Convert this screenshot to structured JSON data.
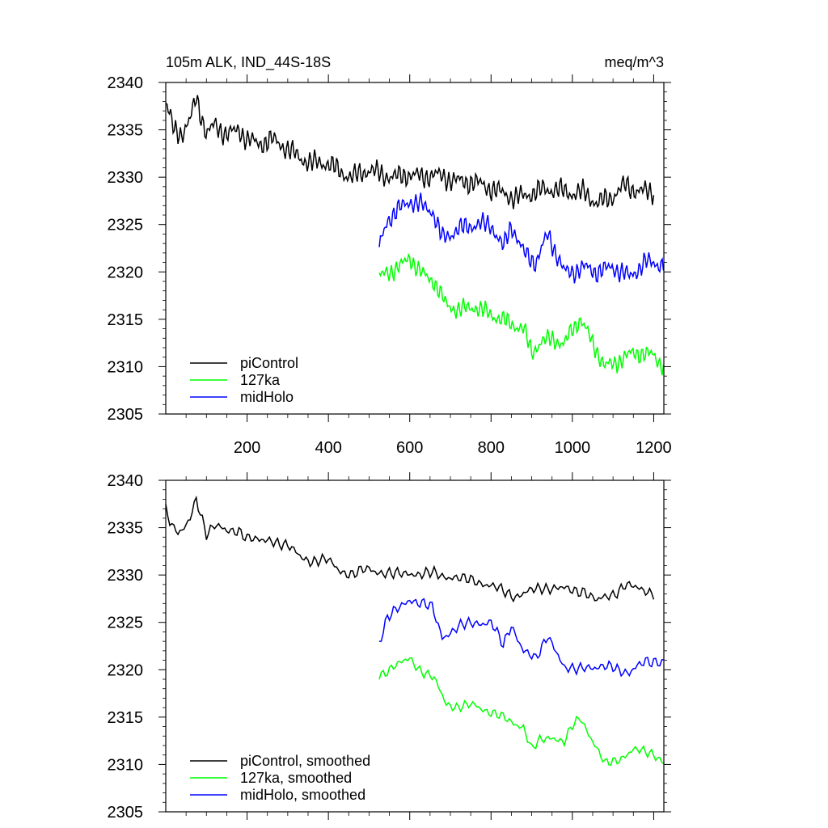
{
  "chart_data": [
    {
      "type": "line",
      "title_left": "105m ALK, IND_44S-18S",
      "title_right": "meq/m^3",
      "xlabel": "",
      "ylabel": "",
      "xlim": [
        0,
        1225
      ],
      "ylim": [
        2305,
        2340
      ],
      "xticks": [
        200,
        400,
        600,
        800,
        1000,
        1200
      ],
      "xtick_labels": [
        "200",
        "400",
        "600",
        "800",
        "1000",
        "1200"
      ],
      "yticks": [
        2305,
        2310,
        2315,
        2320,
        2325,
        2330,
        2335,
        2340
      ],
      "ytick_labels": [
        "2305",
        "2310",
        "2315",
        "2320",
        "2325",
        "2330",
        "2335",
        "2340"
      ],
      "legend_position": "bottom-left",
      "series": [
        {
          "name": "piControl",
          "color": "#000000",
          "x": [
            0,
            20,
            40,
            60,
            75,
            100,
            120,
            150,
            180,
            200,
            230,
            260,
            300,
            330,
            360,
            400,
            430,
            460,
            500,
            530,
            560,
            600,
            630,
            660,
            700,
            730,
            760,
            800,
            830,
            860,
            900,
            930,
            960,
            1000,
            1030,
            1060,
            1100,
            1130,
            1160,
            1200
          ],
          "y": [
            2337.8,
            2335,
            2334.6,
            2336,
            2338.5,
            2334.5,
            2335.5,
            2334.5,
            2335,
            2334,
            2333.5,
            2334,
            2333,
            2332,
            2331.5,
            2331.5,
            2330.5,
            2330,
            2330.8,
            2330.3,
            2330,
            2330.3,
            2330,
            2330.3,
            2329.8,
            2329.5,
            2329.5,
            2328.8,
            2328.3,
            2327.8,
            2328.3,
            2328.7,
            2328.7,
            2328.3,
            2328.4,
            2327.2,
            2328,
            2329.2,
            2328.5,
            2328.5
          ],
          "amplitude": 1.3
        },
        {
          "name": "127ka",
          "color": "#00ff00",
          "x": [
            525,
            550,
            580,
            600,
            630,
            660,
            690,
            720,
            760,
            800,
            850,
            880,
            900,
            920,
            950,
            980,
            1000,
            1020,
            1050,
            1080,
            1110,
            1150,
            1180,
            1200,
            1225
          ],
          "y": [
            2319.5,
            2320,
            2320.7,
            2321.5,
            2319.8,
            2319,
            2316.5,
            2316,
            2316.3,
            2315.5,
            2314.5,
            2314,
            2311.5,
            2312.5,
            2313,
            2312.3,
            2314,
            2315,
            2312.5,
            2310,
            2310.5,
            2311.5,
            2311.3,
            2311.2,
            2310
          ],
          "amplitude": 1.1
        },
        {
          "name": "midHolo",
          "color": "#0000ff",
          "x": [
            525,
            545,
            570,
            600,
            630,
            655,
            680,
            720,
            760,
            800,
            830,
            850,
            880,
            910,
            940,
            960,
            980,
            1000,
            1030,
            1060,
            1100,
            1140,
            1180,
            1200,
            1225
          ],
          "y": [
            2322.5,
            2325.5,
            2326.5,
            2327.5,
            2327,
            2326.5,
            2323.5,
            2324.5,
            2325,
            2325,
            2322.5,
            2325,
            2322,
            2321,
            2324,
            2322,
            2320,
            2320,
            2320.5,
            2320,
            2320.5,
            2319.5,
            2321,
            2321,
            2320.7
          ],
          "amplitude": 1.2
        }
      ]
    },
    {
      "type": "line",
      "title_left": "",
      "title_right": "",
      "xlabel": "",
      "ylabel": "",
      "xlim": [
        0,
        1225
      ],
      "ylim": [
        2305,
        2340
      ],
      "xticks": [
        200,
        400,
        600,
        800,
        1000,
        1200
      ],
      "yticks": [
        2305,
        2310,
        2315,
        2320,
        2325,
        2330,
        2335,
        2340
      ],
      "ytick_labels": [
        "2305",
        "2310",
        "2315",
        "2320",
        "2325",
        "2330",
        "2335",
        "2340"
      ],
      "legend_position": "bottom-left",
      "series": [
        {
          "name": "piControl, smoothed",
          "color": "#000000",
          "x": [
            0,
            20,
            40,
            60,
            75,
            100,
            120,
            150,
            180,
            200,
            230,
            260,
            300,
            330,
            360,
            400,
            430,
            460,
            500,
            530,
            560,
            600,
            630,
            660,
            700,
            730,
            760,
            800,
            830,
            860,
            900,
            930,
            960,
            1000,
            1030,
            1060,
            1100,
            1130,
            1160,
            1200
          ],
          "y": [
            2337,
            2335,
            2334.5,
            2335.8,
            2338,
            2334.5,
            2335.3,
            2334.5,
            2334.8,
            2334,
            2333.5,
            2333.8,
            2333,
            2332,
            2331.5,
            2331.5,
            2330.5,
            2330,
            2330.7,
            2330.3,
            2330,
            2330.3,
            2330,
            2330.2,
            2329.8,
            2329.5,
            2329.5,
            2328.8,
            2328.3,
            2327.8,
            2328.3,
            2328.7,
            2328.7,
            2328.3,
            2328.4,
            2327.2,
            2328,
            2329,
            2328.5,
            2328.2
          ],
          "amplitude": 0.7
        },
        {
          "name": "127ka, smoothed",
          "color": "#00ff00",
          "x": [
            525,
            550,
            580,
            600,
            630,
            660,
            690,
            720,
            760,
            800,
            850,
            880,
            900,
            920,
            950,
            980,
            1000,
            1020,
            1050,
            1080,
            1110,
            1150,
            1180,
            1200,
            1225
          ],
          "y": [
            2319.5,
            2320,
            2320.7,
            2321.3,
            2319.8,
            2319,
            2316.5,
            2316,
            2316.3,
            2315.5,
            2314.5,
            2314,
            2311.5,
            2312.5,
            2313,
            2312.3,
            2314,
            2315,
            2312.5,
            2310,
            2310.5,
            2311.5,
            2311.3,
            2311.2,
            2310.2
          ],
          "amplitude": 0.6
        },
        {
          "name": "midHolo, smoothed",
          "color": "#0000ff",
          "x": [
            525,
            545,
            570,
            600,
            630,
            655,
            680,
            720,
            760,
            800,
            830,
            850,
            880,
            910,
            940,
            960,
            980,
            1000,
            1030,
            1060,
            1100,
            1140,
            1180,
            1200,
            1225
          ],
          "y": [
            2323,
            2325.5,
            2326.3,
            2327.5,
            2327,
            2326.5,
            2323.5,
            2324.5,
            2325,
            2325,
            2322.5,
            2324.8,
            2322,
            2321,
            2323.8,
            2322,
            2320,
            2320,
            2320.5,
            2320,
            2320.5,
            2319.5,
            2321,
            2321,
            2320.7
          ],
          "amplitude": 0.7
        }
      ]
    }
  ]
}
